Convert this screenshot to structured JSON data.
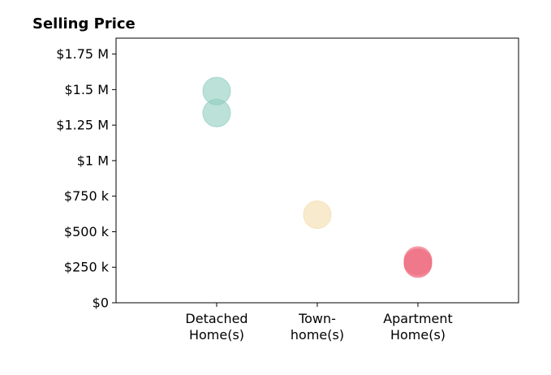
{
  "chart_data": {
    "type": "scatter",
    "title": "Selling Price",
    "xlabel": "",
    "ylabel": "",
    "categories": [
      [
        "Detached",
        "Home(s)"
      ],
      [
        "Town-",
        "home(s)"
      ],
      [
        "Apartment",
        "Home(s)"
      ]
    ],
    "ylim": [
      0,
      1862000
    ],
    "y_ticks": [
      {
        "value": 0,
        "label": "$0"
      },
      {
        "value": 250000,
        "label": "$250 k"
      },
      {
        "value": 500000,
        "label": "$500 k"
      },
      {
        "value": 750000,
        "label": "$750 k"
      },
      {
        "value": 1000000,
        "label": "$1 M"
      },
      {
        "value": 1250000,
        "label": "$1.25 M"
      },
      {
        "value": 1500000,
        "label": "$1.5 M"
      },
      {
        "value": 1750000,
        "label": "$1.75 M"
      }
    ],
    "grid": false,
    "points": [
      {
        "category": 0,
        "y": 1490000,
        "color": "#8fcdc0"
      },
      {
        "category": 0,
        "y": 1335000,
        "color": "#8fcdc0"
      },
      {
        "category": 1,
        "y": 620000,
        "color": "#f3dcaa"
      },
      {
        "category": 2,
        "y": 298000,
        "color": "#ef6f82"
      },
      {
        "category": 2,
        "y": 285000,
        "color": "#ef6f82"
      },
      {
        "category": 2,
        "y": 275000,
        "color": "#ef6f82"
      }
    ]
  }
}
